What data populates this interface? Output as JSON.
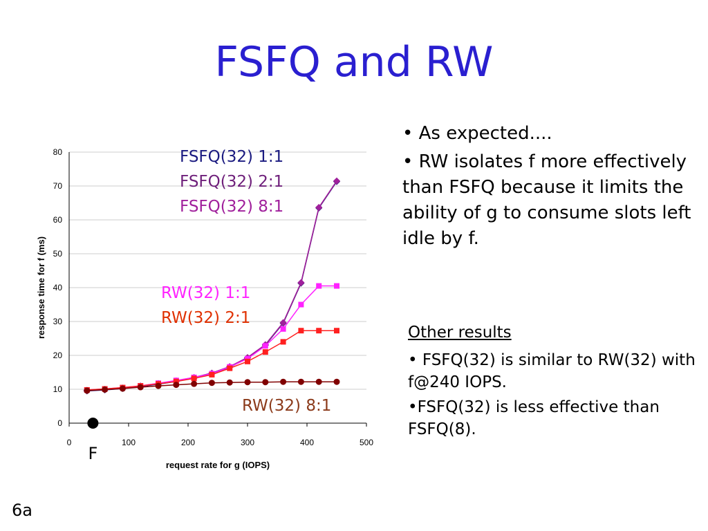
{
  "title": "FSFQ and RW",
  "slide_number": "6a",
  "bullets": [
    "• As expected....",
    "• RW isolates f more effectively than FSFQ because it limits the ability of g to consume slots left idle by f."
  ],
  "other_results": {
    "heading": "Other results",
    "items": [
      "• FSFQ(32) is similar to RW(32) with f@240 IOPS.",
      "•FSFQ(32) is less effective than FSFQ(8)."
    ]
  },
  "chart_data": {
    "type": "line",
    "xlabel": "request rate for g (IOPS)",
    "ylabel": "response time for f (ms)",
    "xlim": [
      0,
      500
    ],
    "ylim": [
      0,
      80
    ],
    "xticks": [
      0,
      100,
      200,
      300,
      400,
      500
    ],
    "yticks": [
      0,
      10,
      20,
      30,
      40,
      50,
      60,
      70,
      80
    ],
    "grid": true,
    "x": [
      30,
      60,
      90,
      120,
      150,
      180,
      210,
      240,
      270,
      300,
      330,
      360,
      390,
      420,
      450
    ],
    "series": [
      {
        "name": "FSFQ(32) 1:1",
        "color": "#1a1a80",
        "marker": "diamond",
        "values": [
          9.5,
          9.8,
          10.2,
          10.8,
          11.5,
          12.3,
          13.3,
          14.6,
          16.5,
          19.2,
          23.0,
          29.5,
          41.3,
          63.5,
          71.3
        ]
      },
      {
        "name": "FSFQ(32) 2:1",
        "color": "#6e1f7a",
        "marker": "diamond",
        "values": [
          9.6,
          9.9,
          10.3,
          10.9,
          11.6,
          12.4,
          13.4,
          14.7,
          16.6,
          19.3,
          23.1,
          29.6,
          41.4,
          63.6,
          71.4
        ]
      },
      {
        "name": "FSFQ(32) 8:1",
        "color": "#a0209c",
        "marker": "diamond",
        "values": [
          9.7,
          10.0,
          10.4,
          11.0,
          11.7,
          12.5,
          13.5,
          14.8,
          16.7,
          19.4,
          23.2,
          29.7,
          41.5,
          63.7,
          71.5
        ]
      },
      {
        "name": "RW(32) 1:1",
        "color": "#ff22ff",
        "marker": "square",
        "values": [
          9.8,
          10.1,
          10.5,
          11.0,
          11.8,
          12.6,
          13.5,
          14.6,
          16.6,
          19.0,
          22.8,
          27.8,
          35.0,
          40.5,
          40.5
        ]
      },
      {
        "name": "RW(32) 2:1",
        "color": "#ff2020",
        "marker": "square",
        "values": [
          9.8,
          10.1,
          10.5,
          11.0,
          11.6,
          12.3,
          13.2,
          14.3,
          16.2,
          18.2,
          21.0,
          24.0,
          27.3,
          27.3,
          27.3
        ]
      },
      {
        "name": "RW(32) 8:1",
        "color": "#800000",
        "marker": "circle",
        "values": [
          9.6,
          9.9,
          10.2,
          10.6,
          11.0,
          11.3,
          11.6,
          11.9,
          12.0,
          12.1,
          12.1,
          12.2,
          12.2,
          12.2,
          12.2
        ]
      }
    ],
    "labels": [
      {
        "text": "FSFQ(32) 1:1",
        "color": "#1a1a80"
      },
      {
        "text": "FSFQ(32) 2:1",
        "color": "#6e1f7a"
      },
      {
        "text": "FSFQ(32) 8:1",
        "color": "#a0209c"
      },
      {
        "text": "RW(32) 1:1",
        "color": "#ff22ff"
      },
      {
        "text": "RW(32) 2:1",
        "color": "#e03000"
      },
      {
        "text": "RW(32) 8:1",
        "color": "#8b3a1a"
      }
    ],
    "marker_point": {
      "label": "F",
      "x": 40,
      "y": 0
    }
  }
}
